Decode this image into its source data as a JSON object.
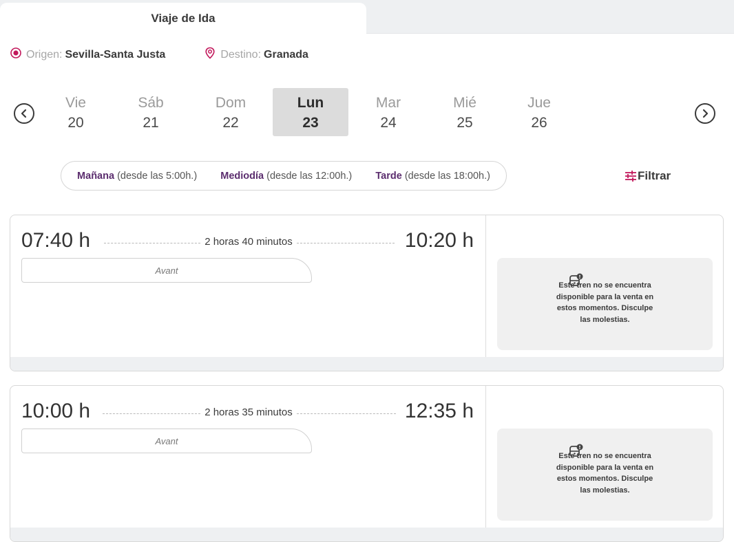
{
  "tabs": {
    "outbound_label": "Viaje de Ida"
  },
  "route": {
    "origin_label": "Origen:",
    "origin_value": "Sevilla-Santa Justa",
    "destination_label": "Destino:",
    "destination_value": "Granada"
  },
  "days": [
    {
      "name": "Vie",
      "num": "20",
      "selected": false
    },
    {
      "name": "Sáb",
      "num": "21",
      "selected": false
    },
    {
      "name": "Dom",
      "num": "22",
      "selected": false
    },
    {
      "name": "Lun",
      "num": "23",
      "selected": true
    },
    {
      "name": "Mar",
      "num": "24",
      "selected": false
    },
    {
      "name": "Mié",
      "num": "25",
      "selected": false
    },
    {
      "name": "Jue",
      "num": "26",
      "selected": false
    }
  ],
  "time_filters": [
    {
      "label": "Mañana",
      "detail": "(desde las 5:00h.)"
    },
    {
      "label": "Mediodía",
      "detail": "(desde las 12:00h.)"
    },
    {
      "label": "Tarde",
      "detail": "(desde las 18:00h.)"
    }
  ],
  "filter_label": "Filtrar",
  "trains": [
    {
      "departure": "07:40 h",
      "arrival": "10:20 h",
      "duration": "2 horas 40 minutos",
      "service": "Avant",
      "unavailable_msg": "Este tren no se encuentra disponible para la venta en estos momentos. Disculpe las molestias."
    },
    {
      "departure": "10:00 h",
      "arrival": "12:35 h",
      "duration": "2 horas 35 minutos",
      "service": "Avant",
      "unavailable_msg": "Este tren no se encuentra disponible para la venta en estos momentos. Disculpe las molestias."
    }
  ],
  "colors": {
    "accent": "#c2185b",
    "brand_purple": "#5b2d6e",
    "selected_day_bg": "#dcdcdc"
  },
  "icons": {
    "origin": "target-icon",
    "destination": "location-pin-icon",
    "prev": "chevron-left-icon",
    "next": "chevron-right-icon",
    "filter": "sliders-icon",
    "unavailable": "train-alert-icon"
  }
}
